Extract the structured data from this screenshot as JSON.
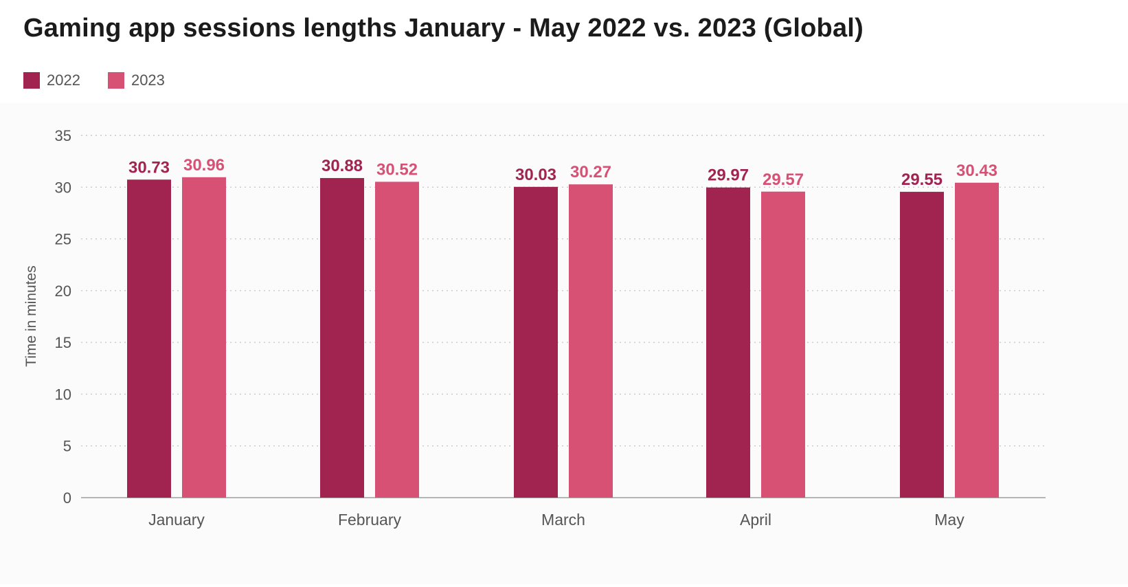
{
  "colors": {
    "series_2022": "#a12450",
    "series_2023": "#d75175",
    "grid": "#c8c8c8",
    "axis": "#b5b5b5",
    "plot_background": "#fbfbfb"
  },
  "chart_data": {
    "type": "bar",
    "title": "Gaming app sessions lengths January - May 2022 vs. 2023 (Global)",
    "xlabel": "",
    "ylabel": "Time in minutes",
    "ylim": [
      0,
      35
    ],
    "yticks": [
      0,
      5,
      10,
      15,
      20,
      25,
      30,
      35
    ],
    "grid": true,
    "legend_position": "top-left",
    "categories": [
      "January",
      "February",
      "March",
      "April",
      "May"
    ],
    "series": [
      {
        "name": "2022",
        "values": [
          30.73,
          30.88,
          30.03,
          29.97,
          29.55
        ]
      },
      {
        "name": "2023",
        "values": [
          30.96,
          30.52,
          30.27,
          29.57,
          30.43
        ]
      }
    ],
    "data_labels": [
      [
        "30.73",
        "30.88",
        "30.03",
        "29.97",
        "29.55"
      ],
      [
        "30.96",
        "30.52",
        "30.27",
        "29.57",
        "30.43"
      ]
    ]
  }
}
